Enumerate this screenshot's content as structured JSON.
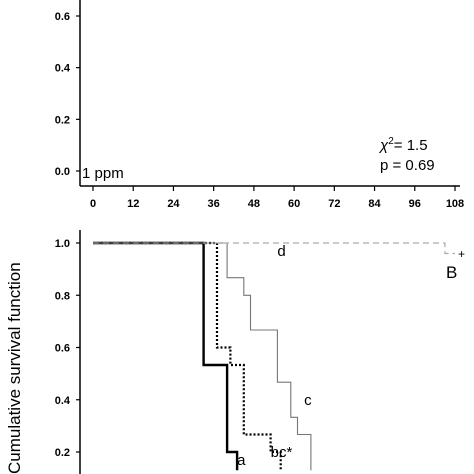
{
  "chart_data": [
    {
      "type": "line",
      "panel_label": "",
      "annotation": "1 ppm",
      "stats": {
        "chi_label": "χ",
        "chi_sup": "2",
        "chi_value": "= 1.5",
        "p_text": "p = 0.69"
      },
      "yticks": [
        "0.0",
        "0.2",
        "0.4",
        "0.6"
      ],
      "xticks": [
        "0",
        "12",
        "24",
        "36",
        "48",
        "60",
        "72",
        "84",
        "96",
        "108"
      ],
      "xlim": [
        0,
        108
      ],
      "ylim": [
        0,
        0.65
      ],
      "series": []
    },
    {
      "type": "line",
      "panel_label": "B",
      "ylabel": "Cumulative survival function",
      "yticks": [
        "0.2",
        "0.4",
        "0.6",
        "0.8",
        "1.0"
      ],
      "xlim": [
        0,
        108
      ],
      "ylim": [
        0.13,
        1.0
      ],
      "series": [
        {
          "name": "a",
          "style": "solid-thick",
          "color": "#000000",
          "points": [
            [
              0,
              1.0
            ],
            [
              33,
              1.0
            ],
            [
              33,
              0.533
            ],
            [
              40,
              0.533
            ],
            [
              40,
              0.2
            ],
            [
              43,
              0.2
            ],
            [
              43,
              0.13
            ]
          ]
        },
        {
          "name": "bc*",
          "style": "dotted",
          "color": "#000000",
          "points": [
            [
              0,
              1.0
            ],
            [
              37,
              1.0
            ],
            [
              37,
              0.6
            ],
            [
              41,
              0.6
            ],
            [
              41,
              0.533
            ],
            [
              45,
              0.533
            ],
            [
              45,
              0.267
            ],
            [
              53,
              0.267
            ],
            [
              53,
              0.2
            ],
            [
              56,
              0.2
            ],
            [
              56,
              0.13
            ]
          ]
        },
        {
          "name": "c",
          "style": "solid-thin",
          "color": "#777777",
          "points": [
            [
              0,
              1.0
            ],
            [
              40,
              1.0
            ],
            [
              40,
              0.867
            ],
            [
              45,
              0.867
            ],
            [
              45,
              0.8
            ],
            [
              47,
              0.8
            ],
            [
              47,
              0.667
            ],
            [
              55,
              0.667
            ],
            [
              55,
              0.467
            ],
            [
              59,
              0.467
            ],
            [
              59,
              0.333
            ],
            [
              61,
              0.333
            ],
            [
              61,
              0.267
            ],
            [
              65,
              0.267
            ],
            [
              65,
              0.13
            ]
          ]
        },
        {
          "name": "d",
          "style": "dashed",
          "color": "#aaaaaa",
          "points": [
            [
              0,
              1.0
            ],
            [
              105,
              1.0
            ],
            [
              105,
              0.96
            ],
            [
              108,
              0.96
            ]
          ]
        }
      ],
      "series_labels": [
        {
          "text": "a",
          "x": 43,
          "y": 0.17
        },
        {
          "text": "bc*",
          "x": 53,
          "y": 0.2
        },
        {
          "text": "c",
          "x": 63,
          "y": 0.4
        },
        {
          "text": "d",
          "x": 55,
          "y": 0.97
        }
      ]
    }
  ]
}
